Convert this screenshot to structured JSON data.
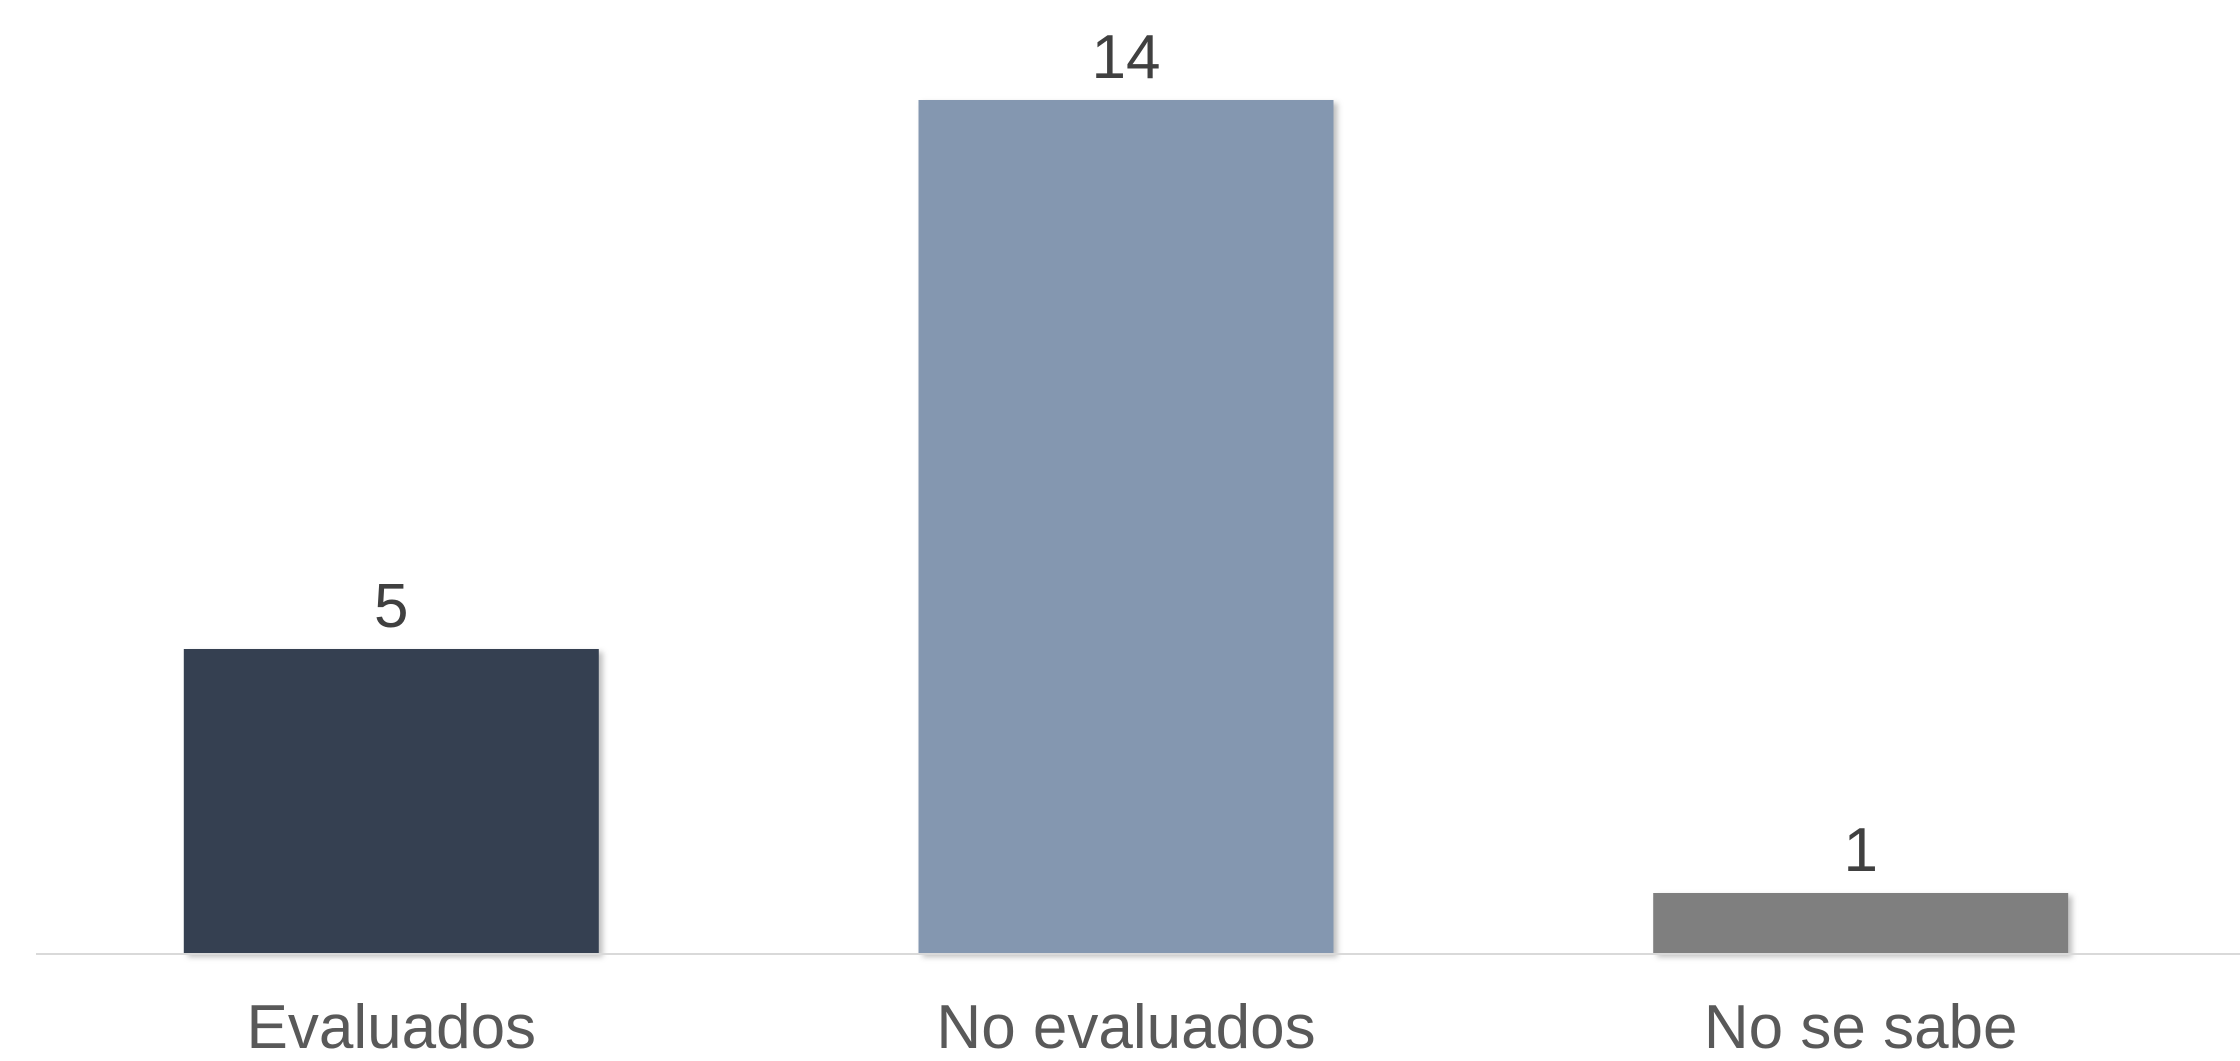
{
  "chart_data": {
    "type": "bar",
    "title": "",
    "xlabel": "",
    "ylabel": "",
    "categories": [
      "Evaluados",
      "No evaluados",
      "No se sabe"
    ],
    "values": [
      5,
      14,
      1
    ],
    "value_labels": [
      "5",
      "14",
      "1"
    ],
    "colors": [
      "#343f51",
      "#8497b0",
      "#7f7f7f"
    ],
    "ylim": [
      0,
      14
    ],
    "grid": false,
    "legend": "none",
    "data_labels": "above-bars"
  }
}
